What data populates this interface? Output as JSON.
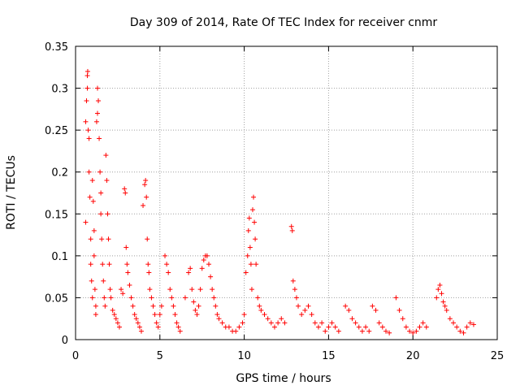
{
  "chart_data": {
    "type": "scatter",
    "title": "Day 309 of 2014, Rate Of TEC Index for receiver cnmr",
    "xlabel": "GPS time / hours",
    "ylabel": "ROTI / TECUs",
    "xlim": [
      0,
      25
    ],
    "ylim": [
      0,
      0.35
    ],
    "grid": true,
    "marker": "+",
    "color": "#ff0000",
    "x_ticks": [
      0,
      5,
      10,
      15,
      20,
      25
    ],
    "x_tick_labels": [
      "0",
      "5",
      "10",
      "15",
      "20",
      "25"
    ],
    "y_ticks": [
      0,
      0.05,
      0.1,
      0.15,
      0.2,
      0.25,
      0.3,
      0.35
    ],
    "y_tick_labels": [
      "0",
      "0.05",
      "0.1",
      "0.15",
      "0.2",
      "0.25",
      "0.3",
      "0.35"
    ],
    "series": [
      {
        "name": "ROTI",
        "points": [
          [
            0.6,
            0.14
          ],
          [
            0.6,
            0.26
          ],
          [
            0.65,
            0.285
          ],
          [
            0.7,
            0.3
          ],
          [
            0.7,
            0.315
          ],
          [
            0.72,
            0.32
          ],
          [
            0.75,
            0.25
          ],
          [
            0.8,
            0.24
          ],
          [
            0.8,
            0.2
          ],
          [
            0.85,
            0.17
          ],
          [
            0.9,
            0.12
          ],
          [
            0.9,
            0.09
          ],
          [
            0.95,
            0.07
          ],
          [
            1.0,
            0.05
          ],
          [
            1.0,
            0.19
          ],
          [
            1.05,
            0.165
          ],
          [
            1.1,
            0.13
          ],
          [
            1.1,
            0.1
          ],
          [
            1.15,
            0.06
          ],
          [
            1.2,
            0.04
          ],
          [
            1.2,
            0.03
          ],
          [
            1.25,
            0.26
          ],
          [
            1.3,
            0.27
          ],
          [
            1.3,
            0.3
          ],
          [
            1.35,
            0.285
          ],
          [
            1.4,
            0.24
          ],
          [
            1.45,
            0.2
          ],
          [
            1.5,
            0.175
          ],
          [
            1.5,
            0.15
          ],
          [
            1.55,
            0.12
          ],
          [
            1.6,
            0.09
          ],
          [
            1.65,
            0.07
          ],
          [
            1.7,
            0.05
          ],
          [
            1.75,
            0.04
          ],
          [
            1.8,
            0.22
          ],
          [
            1.85,
            0.19
          ],
          [
            1.9,
            0.15
          ],
          [
            1.95,
            0.12
          ],
          [
            2.0,
            0.09
          ],
          [
            2.05,
            0.06
          ],
          [
            2.1,
            0.05
          ],
          [
            2.2,
            0.035
          ],
          [
            2.3,
            0.03
          ],
          [
            2.4,
            0.025
          ],
          [
            2.5,
            0.02
          ],
          [
            2.6,
            0.015
          ],
          [
            2.7,
            0.06
          ],
          [
            2.8,
            0.055
          ],
          [
            2.9,
            0.18
          ],
          [
            2.95,
            0.175
          ],
          [
            3.0,
            0.11
          ],
          [
            3.05,
            0.09
          ],
          [
            3.1,
            0.08
          ],
          [
            3.2,
            0.065
          ],
          [
            3.3,
            0.05
          ],
          [
            3.4,
            0.04
          ],
          [
            3.5,
            0.03
          ],
          [
            3.6,
            0.025
          ],
          [
            3.7,
            0.02
          ],
          [
            3.8,
            0.015
          ],
          [
            3.9,
            0.01
          ],
          [
            4.0,
            0.16
          ],
          [
            4.1,
            0.185
          ],
          [
            4.15,
            0.19
          ],
          [
            4.2,
            0.17
          ],
          [
            4.25,
            0.12
          ],
          [
            4.3,
            0.09
          ],
          [
            4.35,
            0.08
          ],
          [
            4.4,
            0.06
          ],
          [
            4.5,
            0.05
          ],
          [
            4.6,
            0.04
          ],
          [
            4.7,
            0.03
          ],
          [
            4.8,
            0.02
          ],
          [
            4.9,
            0.015
          ],
          [
            5.0,
            0.03
          ],
          [
            5.1,
            0.04
          ],
          [
            5.3,
            0.1
          ],
          [
            5.4,
            0.09
          ],
          [
            5.5,
            0.08
          ],
          [
            5.6,
            0.06
          ],
          [
            5.7,
            0.05
          ],
          [
            5.8,
            0.04
          ],
          [
            5.9,
            0.03
          ],
          [
            6.0,
            0.02
          ],
          [
            6.1,
            0.015
          ],
          [
            6.2,
            0.01
          ],
          [
            6.5,
            0.05
          ],
          [
            6.7,
            0.08
          ],
          [
            6.8,
            0.085
          ],
          [
            6.9,
            0.06
          ],
          [
            7.0,
            0.045
          ],
          [
            7.1,
            0.035
          ],
          [
            7.2,
            0.03
          ],
          [
            7.3,
            0.04
          ],
          [
            7.4,
            0.06
          ],
          [
            7.5,
            0.085
          ],
          [
            7.6,
            0.095
          ],
          [
            7.7,
            0.1
          ],
          [
            7.8,
            0.1
          ],
          [
            7.9,
            0.09
          ],
          [
            8.0,
            0.075
          ],
          [
            8.1,
            0.06
          ],
          [
            8.2,
            0.05
          ],
          [
            8.3,
            0.04
          ],
          [
            8.4,
            0.03
          ],
          [
            8.5,
            0.025
          ],
          [
            8.7,
            0.02
          ],
          [
            8.9,
            0.015
          ],
          [
            9.1,
            0.015
          ],
          [
            9.3,
            0.01
          ],
          [
            9.5,
            0.01
          ],
          [
            9.7,
            0.015
          ],
          [
            9.9,
            0.02
          ],
          [
            10.0,
            0.03
          ],
          [
            10.1,
            0.08
          ],
          [
            10.2,
            0.1
          ],
          [
            10.25,
            0.13
          ],
          [
            10.3,
            0.145
          ],
          [
            10.35,
            0.11
          ],
          [
            10.4,
            0.09
          ],
          [
            10.45,
            0.06
          ],
          [
            10.5,
            0.155
          ],
          [
            10.55,
            0.17
          ],
          [
            10.6,
            0.14
          ],
          [
            10.65,
            0.12
          ],
          [
            10.7,
            0.09
          ],
          [
            10.8,
            0.05
          ],
          [
            10.9,
            0.04
          ],
          [
            11.0,
            0.035
          ],
          [
            11.2,
            0.03
          ],
          [
            11.4,
            0.025
          ],
          [
            11.6,
            0.02
          ],
          [
            11.8,
            0.015
          ],
          [
            12.0,
            0.02
          ],
          [
            12.2,
            0.025
          ],
          [
            12.4,
            0.02
          ],
          [
            12.8,
            0.135
          ],
          [
            12.85,
            0.13
          ],
          [
            12.9,
            0.07
          ],
          [
            13.0,
            0.06
          ],
          [
            13.1,
            0.05
          ],
          [
            13.2,
            0.04
          ],
          [
            13.4,
            0.03
          ],
          [
            13.6,
            0.035
          ],
          [
            13.8,
            0.04
          ],
          [
            14.0,
            0.03
          ],
          [
            14.2,
            0.02
          ],
          [
            14.4,
            0.015
          ],
          [
            14.6,
            0.02
          ],
          [
            14.8,
            0.01
          ],
          [
            15.0,
            0.015
          ],
          [
            15.2,
            0.02
          ],
          [
            15.4,
            0.015
          ],
          [
            15.6,
            0.01
          ],
          [
            16.0,
            0.04
          ],
          [
            16.2,
            0.035
          ],
          [
            16.4,
            0.025
          ],
          [
            16.6,
            0.02
          ],
          [
            16.8,
            0.015
          ],
          [
            17.0,
            0.01
          ],
          [
            17.2,
            0.015
          ],
          [
            17.4,
            0.01
          ],
          [
            17.6,
            0.04
          ],
          [
            17.8,
            0.035
          ],
          [
            18.0,
            0.02
          ],
          [
            18.2,
            0.015
          ],
          [
            18.4,
            0.01
          ],
          [
            18.6,
            0.008
          ],
          [
            19.0,
            0.05
          ],
          [
            19.2,
            0.035
          ],
          [
            19.4,
            0.025
          ],
          [
            19.6,
            0.015
          ],
          [
            19.8,
            0.01
          ],
          [
            20.0,
            0.008
          ],
          [
            20.2,
            0.01
          ],
          [
            20.4,
            0.015
          ],
          [
            20.6,
            0.02
          ],
          [
            20.8,
            0.015
          ],
          [
            21.4,
            0.05
          ],
          [
            21.5,
            0.06
          ],
          [
            21.6,
            0.065
          ],
          [
            21.7,
            0.055
          ],
          [
            21.8,
            0.045
          ],
          [
            21.9,
            0.04
          ],
          [
            22.0,
            0.035
          ],
          [
            22.2,
            0.025
          ],
          [
            22.4,
            0.02
          ],
          [
            22.6,
            0.015
          ],
          [
            22.8,
            0.01
          ],
          [
            23.0,
            0.008
          ],
          [
            23.2,
            0.015
          ],
          [
            23.4,
            0.02
          ],
          [
            23.6,
            0.018
          ]
        ]
      }
    ]
  }
}
